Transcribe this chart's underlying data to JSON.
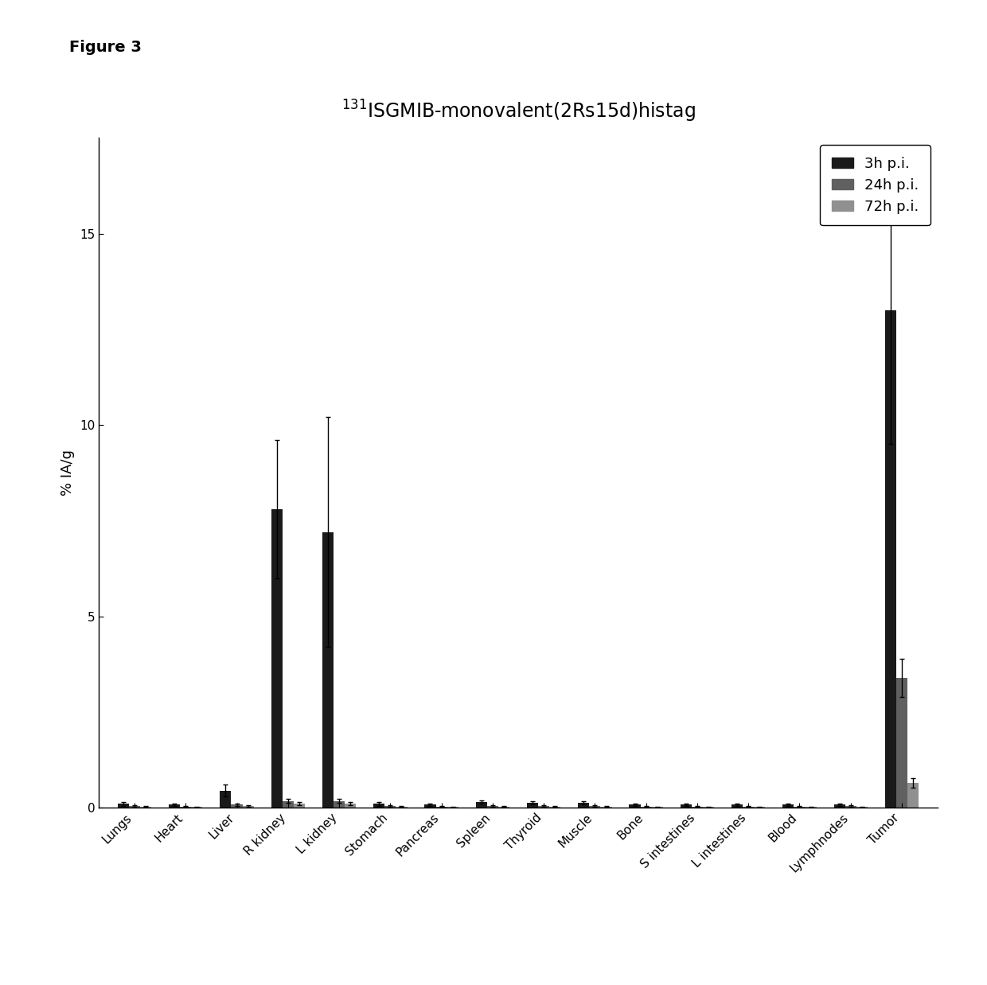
{
  "title": "$^{131}$ISGMIB-monovalent(2Rs15d)histag",
  "ylabel": "% IA/g",
  "figure_label": "Figure 3",
  "categories": [
    "Lungs",
    "Heart",
    "Liver",
    "R kidney",
    "L kidney",
    "Stomach",
    "Pancreas",
    "Spleen",
    "Thyroid",
    "Muscle",
    "Bone",
    "S intestines",
    "L intestines",
    "Blood",
    "Lymphnodes",
    "Tumor"
  ],
  "series": {
    "3h p.i.": {
      "color": "#1a1a1a",
      "values": [
        0.1,
        0.08,
        0.45,
        7.8,
        7.2,
        0.1,
        0.08,
        0.15,
        0.12,
        0.12,
        0.08,
        0.08,
        0.08,
        0.08,
        0.08,
        13.0
      ],
      "errors": [
        0.05,
        0.03,
        0.15,
        1.8,
        3.0,
        0.05,
        0.03,
        0.05,
        0.04,
        0.04,
        0.03,
        0.03,
        0.03,
        0.03,
        0.03,
        3.5
      ]
    },
    "24h p.i.": {
      "color": "#606060",
      "values": [
        0.05,
        0.03,
        0.08,
        0.18,
        0.18,
        0.05,
        0.03,
        0.05,
        0.04,
        0.05,
        0.03,
        0.03,
        0.03,
        0.03,
        0.04,
        3.4
      ],
      "errors": [
        0.02,
        0.01,
        0.03,
        0.06,
        0.06,
        0.02,
        0.01,
        0.02,
        0.02,
        0.02,
        0.01,
        0.01,
        0.01,
        0.01,
        0.02,
        0.5
      ]
    },
    "72h p.i.": {
      "color": "#909090",
      "values": [
        0.03,
        0.02,
        0.05,
        0.1,
        0.1,
        0.03,
        0.02,
        0.03,
        0.03,
        0.03,
        0.02,
        0.02,
        0.02,
        0.02,
        0.02,
        0.65
      ],
      "errors": [
        0.01,
        0.01,
        0.02,
        0.04,
        0.04,
        0.01,
        0.01,
        0.01,
        0.01,
        0.01,
        0.01,
        0.01,
        0.01,
        0.01,
        0.01,
        0.12
      ]
    }
  },
  "ylim": [
    0,
    17.5
  ],
  "yticks": [
    0,
    5,
    10,
    15
  ],
  "bar_width": 0.22,
  "background_color": "#ffffff",
  "title_fontsize": 17,
  "axis_fontsize": 13,
  "tick_fontsize": 11,
  "legend_fontsize": 13
}
